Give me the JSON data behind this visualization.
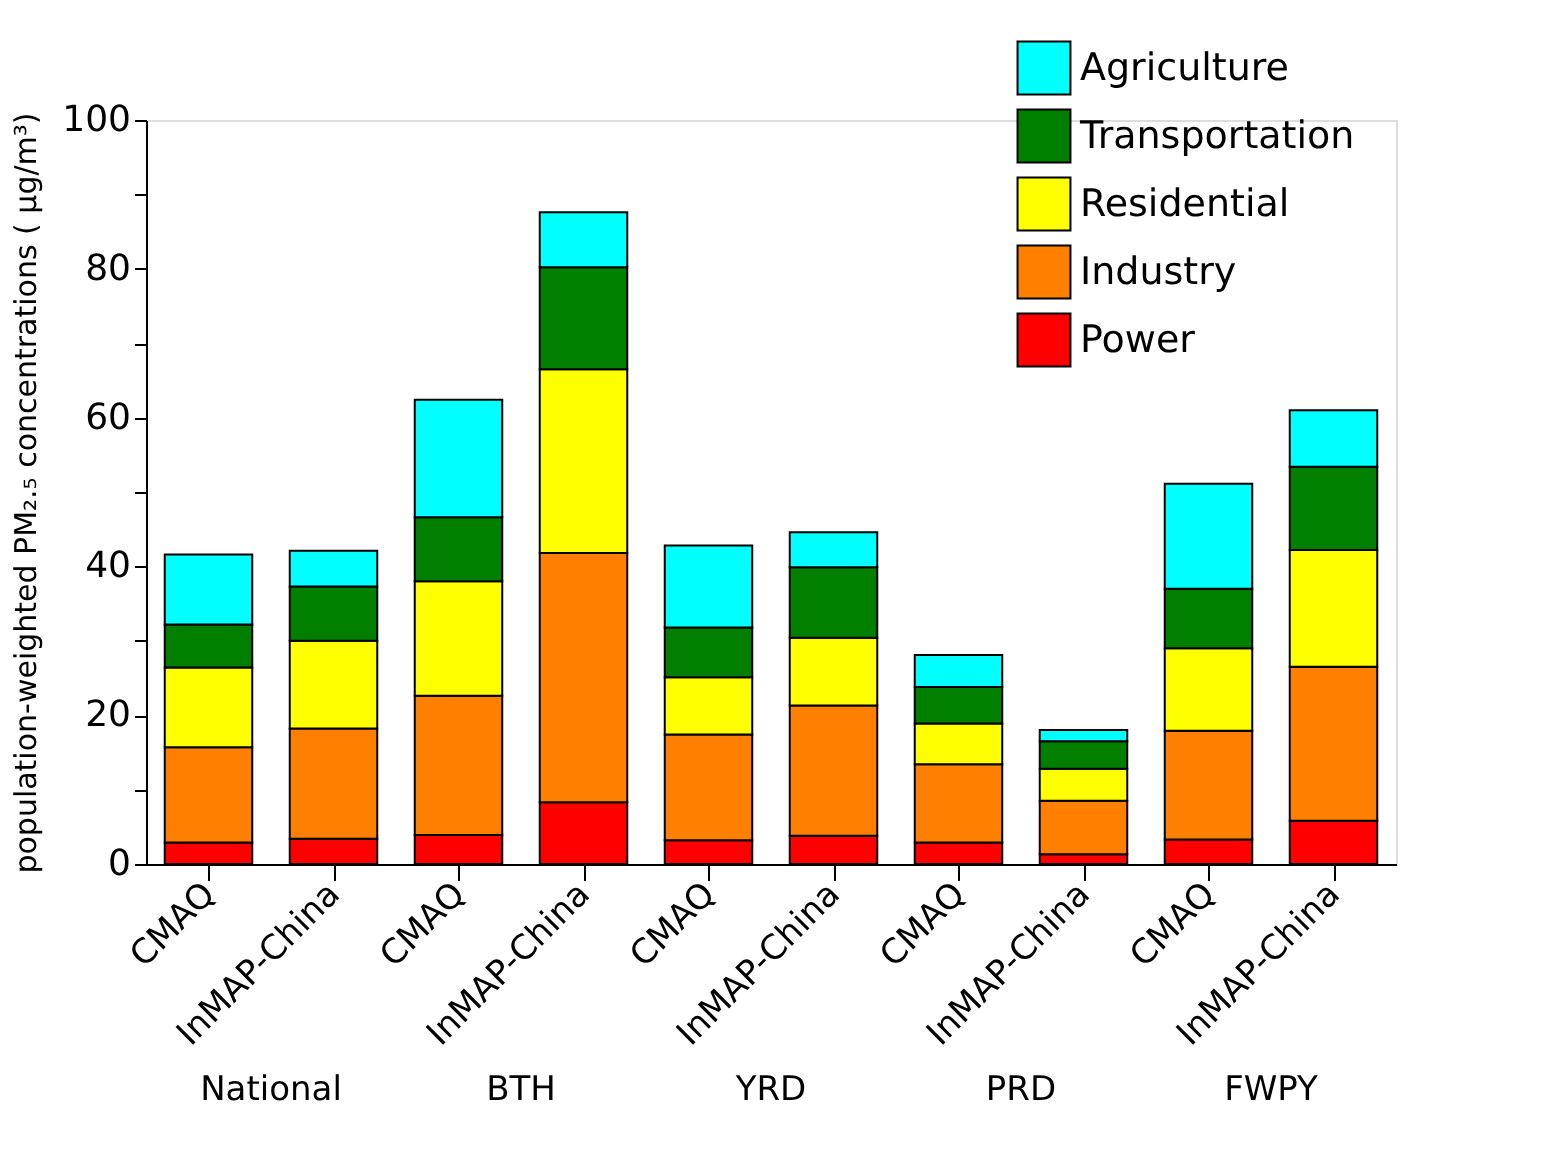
{
  "chart_data": {
    "type": "bar",
    "stacked": true,
    "categories": [
      "CMAQ",
      "InMAP-China",
      "CMAQ",
      "InMAP-China",
      "CMAQ",
      "InMAP-China",
      "CMAQ",
      "InMAP-China",
      "CMAQ",
      "InMAP-China"
    ],
    "ylabel": "population-weighted PM₂.₅ concentrations ( μg/m³)",
    "ylim": [
      0,
      100
    ],
    "yticks": [
      0,
      {
        "value": 10,
        "label": null
      },
      20,
      {
        "value": 30,
        "label": null
      },
      40,
      {
        "value": 50,
        "label": null
      },
      60,
      {
        "value": 70,
        "label": null
      },
      80,
      {
        "value": 90,
        "label": null
      },
      100
    ],
    "annotations": [
      "National",
      "BTH",
      "YRD",
      "PRD",
      "FWPY"
    ],
    "legend": "top right",
    "grid": false,
    "series": [
      {
        "name": "Power",
        "color": "#ff0000",
        "values": [
          2.9,
          3.4,
          3.9,
          8.3,
          3.2,
          3.8,
          2.9,
          1.3,
          3.3,
          5.8
        ]
      },
      {
        "name": "Industry",
        "color": "#ff8000",
        "values": [
          12.8,
          14.8,
          18.7,
          33.5,
          14.2,
          17.5,
          10.5,
          7.2,
          14.6,
          20.7
        ]
      },
      {
        "name": "Residential",
        "color": "#ffff00",
        "values": [
          10.7,
          11.8,
          15.4,
          24.7,
          7.7,
          9.1,
          5.5,
          4.3,
          11.1,
          15.7
        ]
      },
      {
        "name": "Transportation",
        "color": "#007f00",
        "values": [
          5.8,
          7.3,
          8.6,
          13.7,
          6.7,
          9.5,
          4.9,
          3.7,
          8.0,
          11.2
        ]
      },
      {
        "name": "Agriculture",
        "color": "#00ffff",
        "values": [
          9.4,
          4.8,
          15.8,
          7.4,
          11.0,
          4.7,
          4.3,
          1.5,
          14.1,
          7.6
        ]
      }
    ]
  }
}
